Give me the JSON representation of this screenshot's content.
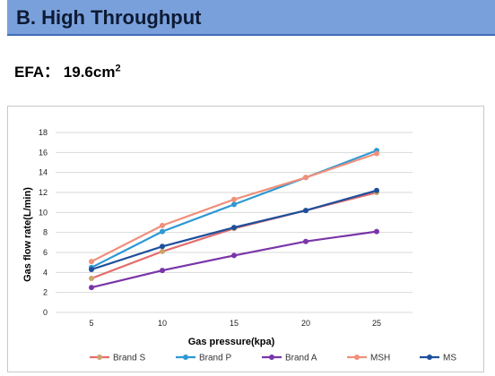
{
  "header": {
    "title": "B. High Throughput"
  },
  "efa": {
    "label": "EFA： 19.6cm",
    "unit_exponent": "2"
  },
  "chart_data": {
    "type": "line",
    "x": [
      5,
      10,
      15,
      20,
      25
    ],
    "categories": [
      "5",
      "10",
      "15",
      "20",
      "25"
    ],
    "xlabel": "Gas pressure(kpa)",
    "ylabel": "Gas flow rate(L/min)",
    "ylim": [
      0,
      18
    ],
    "yticks": [
      0,
      2,
      4,
      6,
      8,
      10,
      12,
      14,
      16,
      18
    ],
    "grid": "horizontal",
    "legend_position": "bottom",
    "series": [
      {
        "name": "Brand S",
        "color": "#e46c6c",
        "marker_color": "#c9a56a",
        "values": [
          3.4,
          6.1,
          8.4,
          10.2,
          12.0
        ]
      },
      {
        "name": "Brand P",
        "color": "#2e98d2",
        "marker_color": "#2e98d2",
        "values": [
          4.5,
          8.1,
          10.8,
          13.5,
          16.2
        ]
      },
      {
        "name": "Brand A",
        "color": "#7a35a8",
        "marker_color": "#7a35a8",
        "values": [
          2.5,
          4.2,
          5.7,
          7.1,
          8.1
        ]
      },
      {
        "name": "MSH",
        "color": "#f0907a",
        "marker_color": "#f0907a",
        "values": [
          5.1,
          8.7,
          11.3,
          13.5,
          15.9
        ]
      },
      {
        "name": "MS",
        "color": "#1d4f9c",
        "marker_color": "#1d4f9c",
        "values": [
          4.3,
          6.6,
          8.5,
          10.2,
          12.2
        ]
      }
    ]
  }
}
